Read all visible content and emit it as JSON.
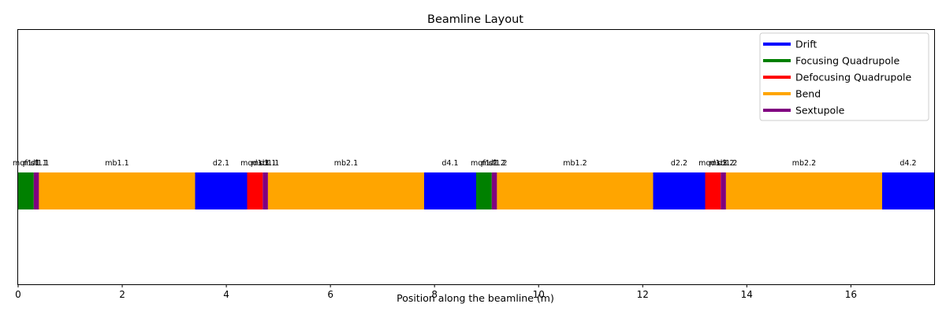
{
  "chart_data": {
    "type": "bar",
    "title": "Beamline Layout",
    "xlabel": "Position along the beamline (m)",
    "ylabel": "",
    "xlim": [
      0,
      17.6
    ],
    "xticks": [
      0,
      2,
      4,
      6,
      8,
      10,
      12,
      14,
      16
    ],
    "grid": false,
    "legend_position": "top-right",
    "legend": [
      {
        "name": "Drift",
        "color": "#0000ff"
      },
      {
        "name": "Focusing Quadrupole",
        "color": "#008000"
      },
      {
        "name": "Defocusing Quadrupole",
        "color": "#ff0000"
      },
      {
        "name": "Bend",
        "color": "#ffa500"
      },
      {
        "name": "Sextupole",
        "color": "#800080"
      }
    ],
    "elements": [
      {
        "name": "mqf1.1",
        "start": 0.0,
        "length": 0.3,
        "kind": 1
      },
      {
        "name": "msf1.1",
        "start": 0.3,
        "length": 0.1,
        "kind": 4
      },
      {
        "name": "d1.1",
        "start": 0.4,
        "length": 0.0,
        "kind": 0
      },
      {
        "name": "mb1.1",
        "start": 0.4,
        "length": 3.0,
        "kind": 3
      },
      {
        "name": "d2.1",
        "start": 3.4,
        "length": 1.0,
        "kind": 0
      },
      {
        "name": "mqd1.1",
        "start": 4.4,
        "length": 0.3,
        "kind": 2
      },
      {
        "name": "msd1.1",
        "start": 4.7,
        "length": 0.1,
        "kind": 4
      },
      {
        "name": "d3.1",
        "start": 4.8,
        "length": 0.0,
        "kind": 0
      },
      {
        "name": "mb2.1",
        "start": 4.8,
        "length": 3.0,
        "kind": 3
      },
      {
        "name": "d4.1",
        "start": 7.8,
        "length": 1.0,
        "kind": 0
      },
      {
        "name": "mqf1.2",
        "start": 8.8,
        "length": 0.3,
        "kind": 1
      },
      {
        "name": "msf1.2",
        "start": 9.1,
        "length": 0.1,
        "kind": 4
      },
      {
        "name": "d1.2",
        "start": 9.2,
        "length": 0.0,
        "kind": 0
      },
      {
        "name": "mb1.2",
        "start": 9.2,
        "length": 3.0,
        "kind": 3
      },
      {
        "name": "d2.2",
        "start": 12.2,
        "length": 1.0,
        "kind": 0
      },
      {
        "name": "mqd1.2",
        "start": 13.2,
        "length": 0.3,
        "kind": 2
      },
      {
        "name": "msd1.2",
        "start": 13.5,
        "length": 0.1,
        "kind": 4
      },
      {
        "name": "d3.2",
        "start": 13.6,
        "length": 0.0,
        "kind": 0
      },
      {
        "name": "mb2.2",
        "start": 13.6,
        "length": 3.0,
        "kind": 3
      },
      {
        "name": "d4.2",
        "start": 16.6,
        "length": 1.0,
        "kind": 0
      }
    ]
  }
}
